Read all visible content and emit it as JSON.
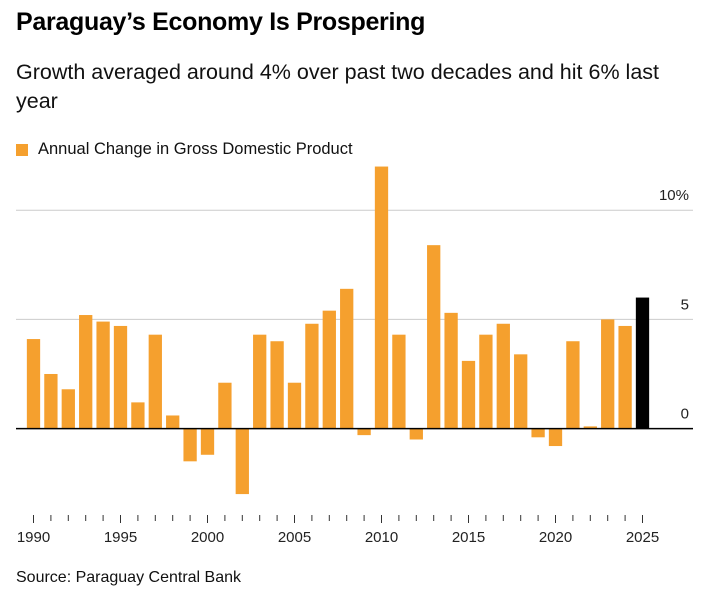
{
  "title": "Paraguay’s Economy Is Prospering",
  "subtitle": "Growth averaged around 4% over past two decades and hit 6% last year",
  "source": "Source: Paraguay Central Bank",
  "colors": {
    "bar": "#F5A02E",
    "highlight": "#000000",
    "grid": "#cccccc",
    "zero": "#000000"
  },
  "chart_data": {
    "type": "bar",
    "legend": "Annual Change in Gross Domestic Product",
    "legend_position": "top-left",
    "grid": true,
    "ylim": [
      -3.5,
      12.3
    ],
    "y_ticks": [
      {
        "value": 10,
        "label": "10%"
      },
      {
        "value": 5,
        "label": "5"
      },
      {
        "value": 0,
        "label": "0"
      }
    ],
    "x_ticks": [
      1990,
      1995,
      2000,
      2005,
      2010,
      2015,
      2020,
      2025
    ],
    "series": [
      {
        "x": [
          1990,
          1991,
          1992,
          1993,
          1994,
          1995,
          1996,
          1997,
          1998,
          1999,
          2000,
          2001,
          2002,
          2003,
          2004,
          2005,
          2006,
          2007,
          2008,
          2009,
          2010,
          2011,
          2012,
          2013,
          2014,
          2015,
          2016,
          2017,
          2018,
          2019,
          2020,
          2021,
          2022,
          2023,
          2024
        ],
        "values": [
          4.1,
          2.5,
          1.8,
          5.2,
          4.9,
          4.7,
          1.2,
          4.3,
          0.6,
          -1.5,
          -1.2,
          2.1,
          -3.0,
          4.3,
          4.0,
          2.1,
          4.8,
          5.4,
          6.4,
          -0.3,
          12.0,
          4.3,
          -0.5,
          8.4,
          5.3,
          3.1,
          4.3,
          4.8,
          3.4,
          -0.4,
          -0.8,
          4.0,
          0.1,
          5.0,
          4.7
        ]
      },
      {
        "x": [
          2025
        ],
        "values": [
          6.0
        ],
        "highlight": true
      }
    ]
  }
}
